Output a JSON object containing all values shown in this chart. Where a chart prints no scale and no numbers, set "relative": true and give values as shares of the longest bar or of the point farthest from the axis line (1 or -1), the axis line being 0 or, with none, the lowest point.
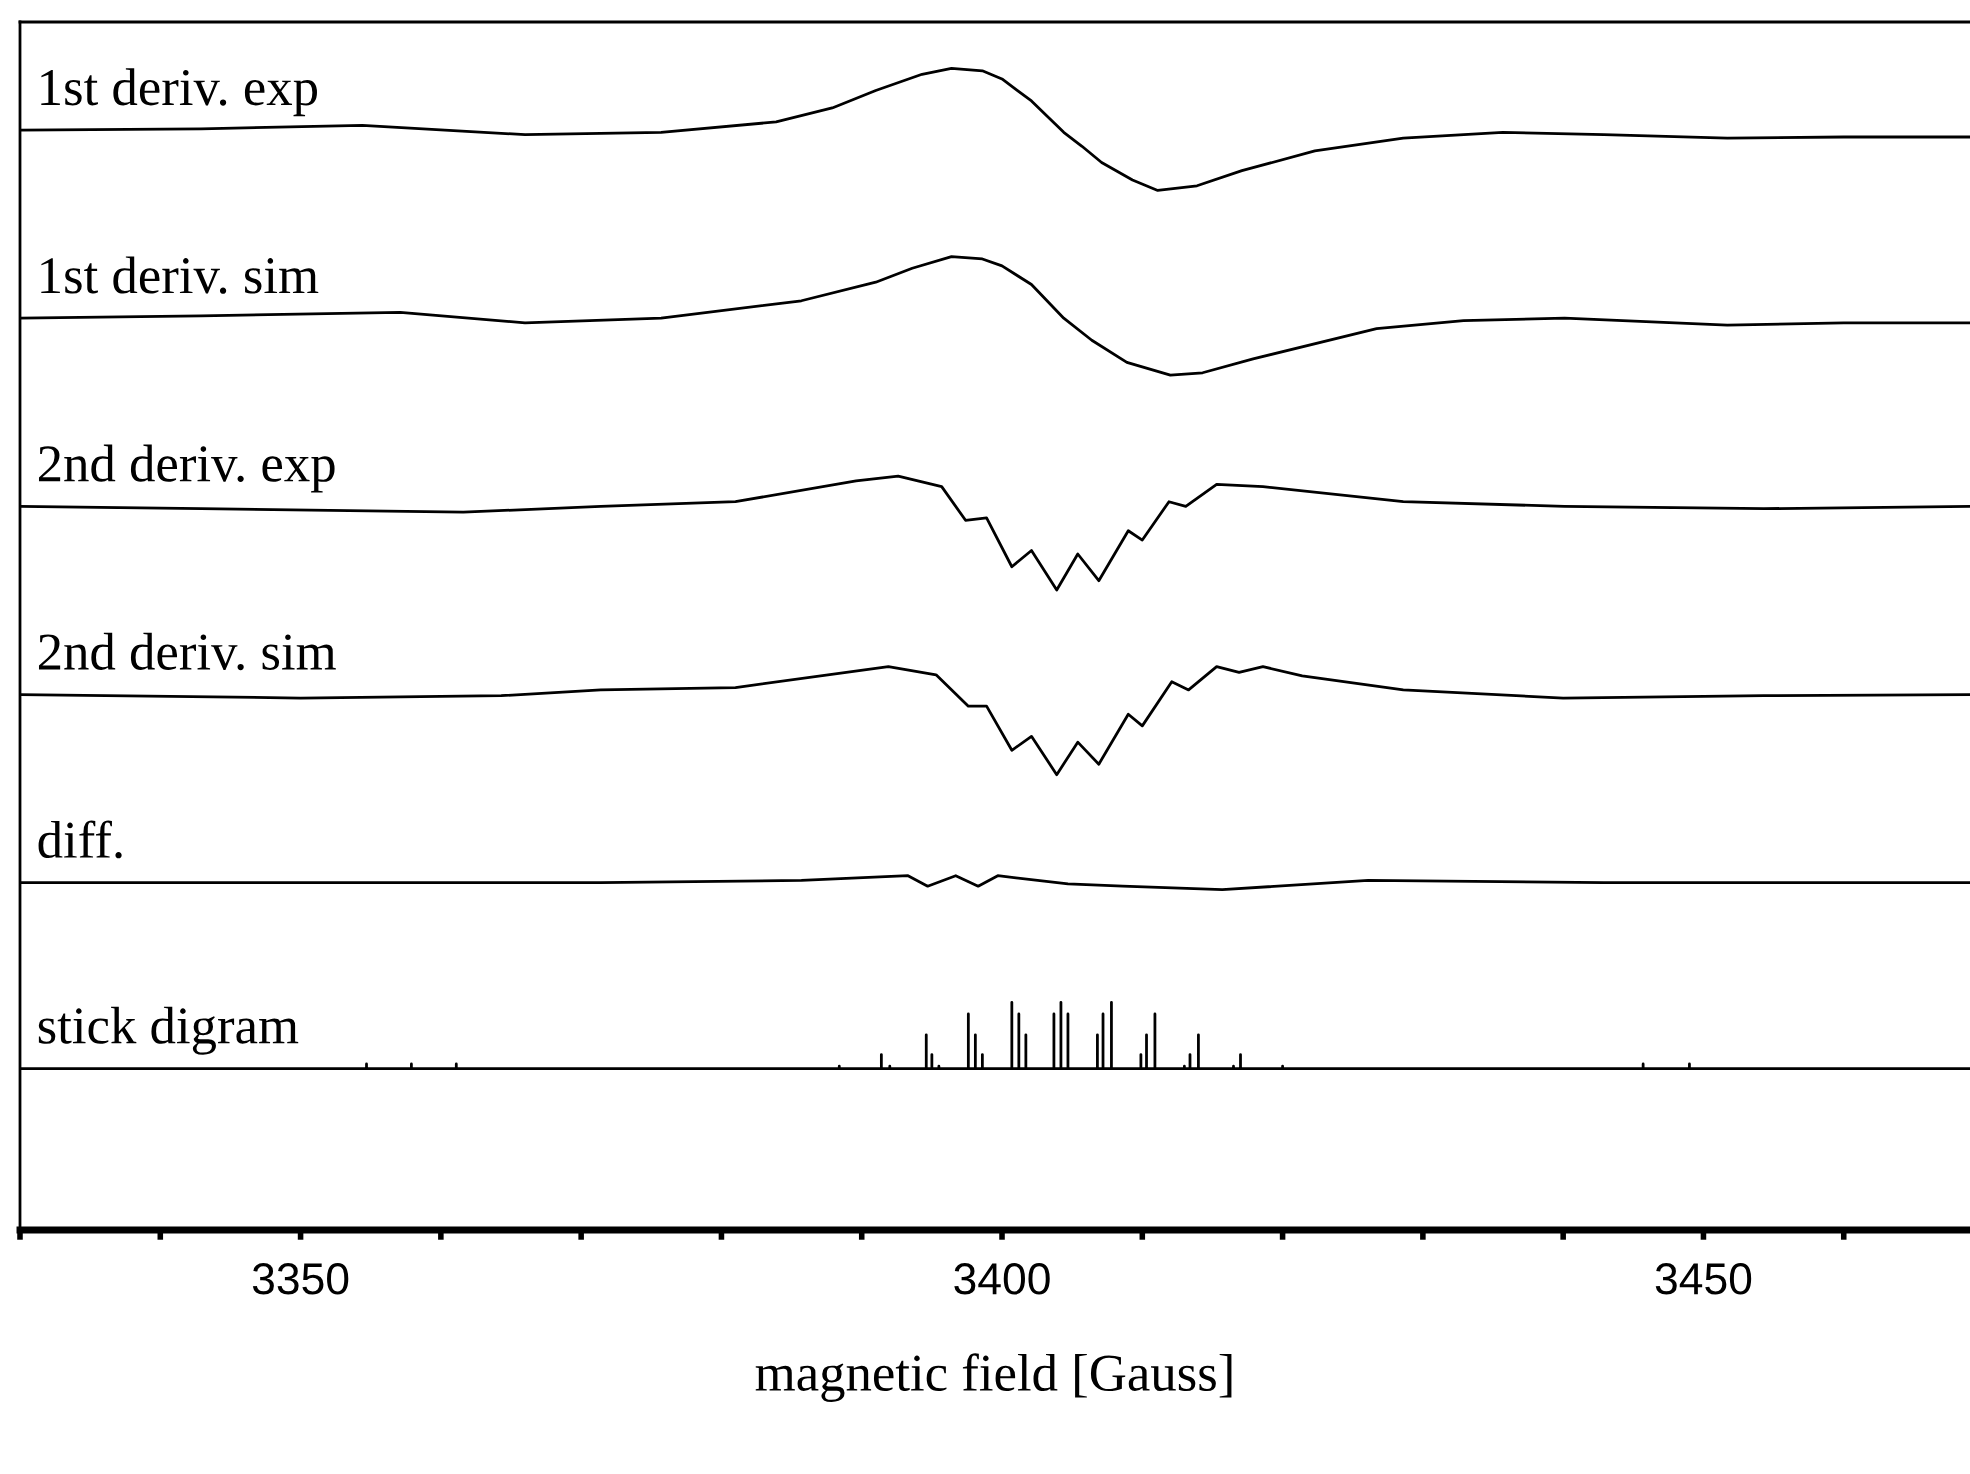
{
  "chart_data": {
    "type": "line",
    "relative": true,
    "xlabel": "magnetic field [Gauss]",
    "xlim": [
      3330,
      3469
    ],
    "xticks": [
      {
        "value": 3330,
        "label": null
      },
      {
        "value": 3340,
        "label": null
      },
      3350,
      {
        "value": 3360,
        "label": null
      },
      {
        "value": 3370,
        "label": null
      },
      {
        "value": 3380,
        "label": null
      },
      {
        "value": 3390,
        "label": null
      },
      3400,
      {
        "value": 3410,
        "label": null
      },
      {
        "value": 3420,
        "label": null
      },
      {
        "value": 3430,
        "label": null
      },
      {
        "value": 3440,
        "label": null
      },
      3450,
      {
        "value": 3460,
        "label": null
      }
    ],
    "tick_labels": "x",
    "grid": false,
    "legend": false,
    "marker": "none",
    "line_style": "solid",
    "series": [
      {
        "name": "1st deriv. exp",
        "color": "#000000",
        "x": [
          3330,
          3342.9,
          3354.4,
          3366.0,
          3375.7,
          3383.9,
          3387.9,
          3391.0,
          3394.3,
          3396.4,
          3398.6,
          3400.0,
          3402.1,
          3404.4,
          3405.7,
          3407.1,
          3409.3,
          3411.1,
          3413.9,
          3417.1,
          3422.3,
          3428.6,
          3435.7,
          3442.9,
          3451.7,
          3460.0,
          3469
        ],
        "values": [
          0.947,
          0.948,
          0.951,
          0.943,
          0.945,
          0.954,
          0.966,
          0.981,
          0.995,
          1.0,
          0.998,
          0.991,
          0.972,
          0.945,
          0.933,
          0.919,
          0.904,
          0.895,
          0.899,
          0.912,
          0.929,
          0.94,
          0.945,
          0.943,
          0.94,
          0.941,
          0.941
        ]
      },
      {
        "name": "1st deriv. sim",
        "color": "#000000",
        "x": [
          3330,
          3342.9,
          3357.1,
          3366.0,
          3375.7,
          3385.7,
          3391.0,
          3393.6,
          3396.4,
          3398.6,
          3400.0,
          3402.1,
          3404.4,
          3406.4,
          3408.9,
          3412.0,
          3414.3,
          3417.9,
          3426.7,
          3432.9,
          3440.1,
          3451.7,
          3460.0,
          3469
        ],
        "values": [
          0.785,
          0.787,
          0.79,
          0.781,
          0.785,
          0.8,
          0.816,
          0.828,
          0.838,
          0.836,
          0.83,
          0.814,
          0.785,
          0.766,
          0.747,
          0.736,
          0.738,
          0.75,
          0.776,
          0.783,
          0.785,
          0.779,
          0.781,
          0.781
        ]
      },
      {
        "name": "2nd deriv. exp",
        "color": "#000000",
        "x": [
          3330,
          3342.9,
          3361.6,
          3371.4,
          3381.0,
          3389.6,
          3392.6,
          3395.7,
          3397.4,
          3398.9,
          3400.7,
          3402.1,
          3403.9,
          3405.4,
          3406.9,
          3409.0,
          3410.0,
          3411.9,
          3413.1,
          3415.3,
          3418.6,
          3428.6,
          3440.1,
          3454.3,
          3469
        ],
        "values": [
          0.623,
          0.621,
          0.618,
          0.623,
          0.627,
          0.645,
          0.649,
          0.64,
          0.611,
          0.613,
          0.571,
          0.585,
          0.551,
          0.582,
          0.559,
          0.602,
          0.594,
          0.627,
          0.623,
          0.642,
          0.64,
          0.627,
          0.623,
          0.621,
          0.623
        ]
      },
      {
        "name": "2nd deriv. sim",
        "color": "#000000",
        "x": [
          3330,
          3350,
          3364.3,
          3371.4,
          3381.0,
          3391.9,
          3395.3,
          3397.6,
          3398.9,
          3400.7,
          3402.1,
          3403.9,
          3405.4,
          3406.9,
          3409.0,
          3410.0,
          3412.1,
          3413.3,
          3415.3,
          3416.9,
          3418.6,
          3421.4,
          3428.6,
          3440,
          3454.3,
          3469
        ],
        "values": [
          0.461,
          0.458,
          0.46,
          0.465,
          0.467,
          0.485,
          0.478,
          0.451,
          0.451,
          0.413,
          0.425,
          0.392,
          0.42,
          0.401,
          0.444,
          0.434,
          0.472,
          0.465,
          0.485,
          0.48,
          0.485,
          0.477,
          0.465,
          0.458,
          0.46,
          0.461
        ]
      },
      {
        "name": "diff.",
        "color": "#000000",
        "x": [
          3330,
          3357.1,
          3371.4,
          3385.7,
          3393.3,
          3394.7,
          3396.7,
          3398.3,
          3399.7,
          3404.7,
          3408.6,
          3415.7,
          3426.1,
          3442.9,
          3469
        ],
        "values": [
          0.299,
          0.299,
          0.299,
          0.301,
          0.305,
          0.296,
          0.305,
          0.296,
          0.305,
          0.298,
          0.296,
          0.293,
          0.301,
          0.299,
          0.299
        ]
      },
      {
        "name": "stick digram",
        "color": "#000000",
        "x": [
          3330,
          3354.7,
          3354.7,
          3354.7,
          3357.9,
          3357.9,
          3357.9,
          3361.1,
          3361.1,
          3361.1,
          3388.4,
          3388.4,
          3388.4,
          3391.4,
          3391.4,
          3391.4,
          3392.0,
          3392.0,
          3392.0,
          3394.6,
          3394.6,
          3394.6,
          3395.0,
          3395.0,
          3395.0,
          3395.5,
          3395.5,
          3395.5,
          3397.6,
          3397.6,
          3397.6,
          3398.1,
          3398.1,
          3398.1,
          3398.6,
          3398.6,
          3398.6,
          3400.7,
          3400.7,
          3400.7,
          3401.2,
          3401.2,
          3401.2,
          3401.7,
          3401.7,
          3401.7,
          3403.7,
          3403.7,
          3403.7,
          3404.2,
          3404.2,
          3404.2,
          3404.7,
          3404.7,
          3404.7,
          3406.8,
          3406.8,
          3406.8,
          3407.2,
          3407.2,
          3407.2,
          3407.8,
          3407.8,
          3407.8,
          3409.9,
          3409.9,
          3409.9,
          3410.3,
          3410.3,
          3410.3,
          3410.9,
          3410.9,
          3410.9,
          3413.0,
          3413.0,
          3413.0,
          3413.4,
          3413.4,
          3413.4,
          3414.0,
          3414.0,
          3414.0,
          3416.5,
          3416.5,
          3416.5,
          3417.0,
          3417.0,
          3417.0,
          3420.0,
          3420.0,
          3420.0,
          3445.7,
          3445.7,
          3445.7,
          3449.0,
          3449.0,
          3449.0,
          3469
        ],
        "values": [
          0.139,
          0.139,
          0.143,
          0.139,
          0.139,
          0.143,
          0.139,
          0.139,
          0.143,
          0.139,
          0.139,
          0.141,
          0.139,
          0.139,
          0.151,
          0.139,
          0.139,
          0.141,
          0.139,
          0.139,
          0.168,
          0.139,
          0.139,
          0.151,
          0.139,
          0.139,
          0.141,
          0.139,
          0.139,
          0.186,
          0.139,
          0.139,
          0.168,
          0.139,
          0.139,
          0.151,
          0.139,
          0.139,
          0.196,
          0.139,
          0.139,
          0.186,
          0.139,
          0.139,
          0.168,
          0.139,
          0.139,
          0.186,
          0.139,
          0.139,
          0.196,
          0.139,
          0.139,
          0.186,
          0.139,
          0.139,
          0.168,
          0.139,
          0.139,
          0.186,
          0.139,
          0.139,
          0.196,
          0.139,
          0.139,
          0.151,
          0.139,
          0.139,
          0.168,
          0.139,
          0.139,
          0.186,
          0.139,
          0.139,
          0.141,
          0.139,
          0.139,
          0.151,
          0.139,
          0.139,
          0.168,
          0.139,
          0.139,
          0.141,
          0.139,
          0.139,
          0.151,
          0.139,
          0.139,
          0.141,
          0.139,
          0.139,
          0.143,
          0.139,
          0.139,
          0.143,
          0.139,
          0.139
        ]
      }
    ]
  }
}
